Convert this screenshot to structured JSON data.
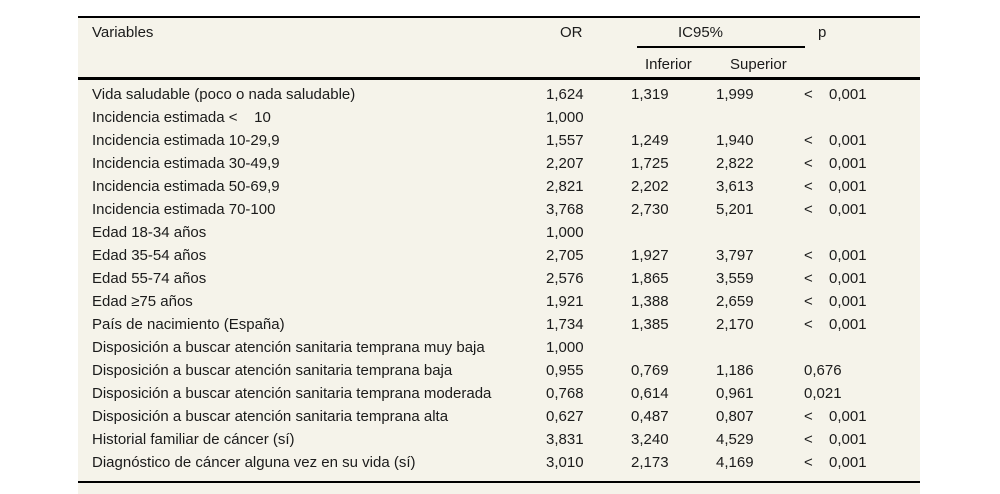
{
  "colors": {
    "panel_background": "#f5f3ea",
    "rule": "#000000",
    "text": "#1b1b1b"
  },
  "table": {
    "headers": {
      "variables": "Variables",
      "or": "OR",
      "ic95": "IC95%",
      "inferior": "Inferior",
      "superior": "Superior",
      "p": "p"
    },
    "rows": [
      {
        "label": "Vida saludable (poco o nada saludable)",
        "or": "1,624",
        "inf": "1,319",
        "sup": "1,999",
        "p_sign": "<",
        "p": "0,001"
      },
      {
        "label": "Incidencia estimada <    10",
        "or": "1,000",
        "inf": "",
        "sup": "",
        "p_sign": "",
        "p": ""
      },
      {
        "label": "Incidencia estimada 10-29,9",
        "or": "1,557",
        "inf": "1,249",
        "sup": "1,940",
        "p_sign": "<",
        "p": "0,001"
      },
      {
        "label": "Incidencia estimada 30-49,9",
        "or": "2,207",
        "inf": "1,725",
        "sup": "2,822",
        "p_sign": "<",
        "p": "0,001"
      },
      {
        "label": "Incidencia estimada 50-69,9",
        "or": "2,821",
        "inf": "2,202",
        "sup": "3,613",
        "p_sign": "<",
        "p": "0,001"
      },
      {
        "label": "Incidencia estimada 70-100",
        "or": "3,768",
        "inf": "2,730",
        "sup": "5,201",
        "p_sign": "<",
        "p": "0,001"
      },
      {
        "label": "Edad 18-34 años",
        "or": "1,000",
        "inf": "",
        "sup": "",
        "p_sign": "",
        "p": ""
      },
      {
        "label": "Edad 35-54 años",
        "or": "2,705",
        "inf": "1,927",
        "sup": "3,797",
        "p_sign": "<",
        "p": "0,001"
      },
      {
        "label": "Edad 55-74 años",
        "or": "2,576",
        "inf": "1,865",
        "sup": "3,559",
        "p_sign": "<",
        "p": "0,001"
      },
      {
        "label": "Edad ≥75 años",
        "or": "1,921",
        "inf": "1,388",
        "sup": "2,659",
        "p_sign": "<",
        "p": "0,001"
      },
      {
        "label": "País de nacimiento (España)",
        "or": "1,734",
        "inf": "1,385",
        "sup": "2,170",
        "p_sign": "<",
        "p": "0,001"
      },
      {
        "label": "Disposición a buscar atención sanitaria temprana muy baja",
        "or": "1,000",
        "inf": "",
        "sup": "",
        "p_sign": "",
        "p": ""
      },
      {
        "label": "Disposición a buscar atención sanitaria temprana baja",
        "or": "0,955",
        "inf": "0,769",
        "sup": "1,186",
        "p_sign": "",
        "p": "0,676"
      },
      {
        "label": "Disposición a buscar atención sanitaria temprana moderada",
        "or": "0,768",
        "inf": "0,614",
        "sup": "0,961",
        "p_sign": "",
        "p": "0,021"
      },
      {
        "label": "Disposición a buscar atención sanitaria temprana alta",
        "or": "0,627",
        "inf": "0,487",
        "sup": "0,807",
        "p_sign": "<",
        "p": "0,001"
      },
      {
        "label": "Historial familiar de cáncer (sí)",
        "or": "3,831",
        "inf": "3,240",
        "sup": "4,529",
        "p_sign": "<",
        "p": "0,001"
      },
      {
        "label": "Diagnóstico de cáncer alguna vez en su vida (sí)",
        "or": "3,010",
        "inf": "2,173",
        "sup": "4,169",
        "p_sign": "<",
        "p": "0,001"
      }
    ]
  }
}
